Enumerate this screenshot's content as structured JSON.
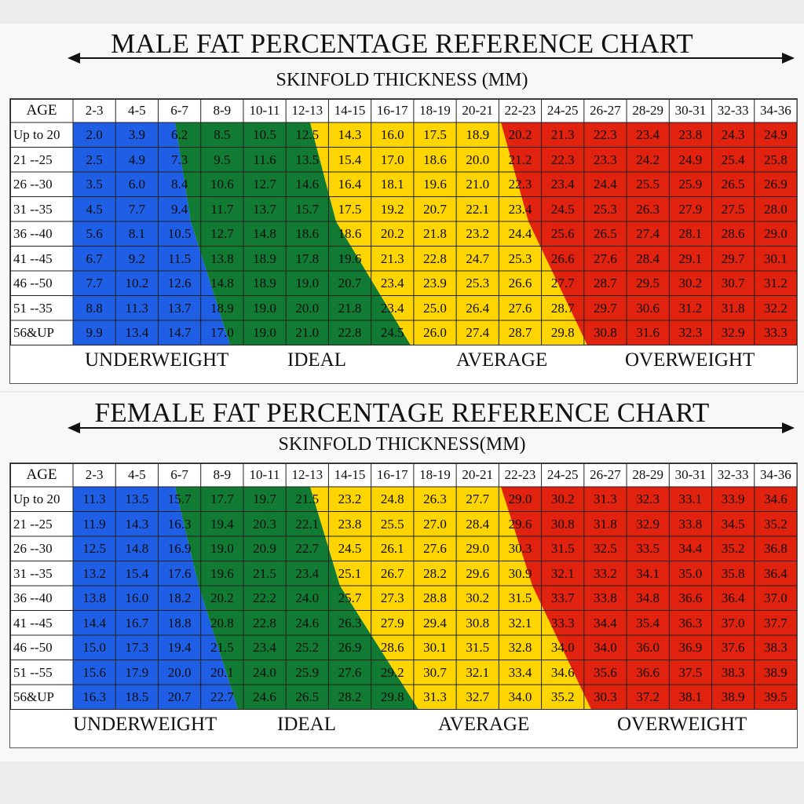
{
  "colors": {
    "underweight": "#1f5fe6",
    "ideal": "#117a33",
    "average": "#ffd500",
    "overweight": "#e0220f"
  },
  "chart_data": [
    {
      "type": "table",
      "title": "MALE FAT PERCENTAGE REFERENCE CHART",
      "subtitle": "SKINFOLD THICKNESS (MM)",
      "corner": "AGE",
      "columns": [
        "2-3",
        "4-5",
        "6-7",
        "8-9",
        "10-11",
        "12-13",
        "14-15",
        "16-17",
        "18-19",
        "20-21",
        "22-23",
        "24-25",
        "26-27",
        "28-29",
        "30-31",
        "32-33",
        "34-36"
      ],
      "rows": [
        "Up to 20",
        "21 --25",
        "26 --30",
        "31 --35",
        "36 --40",
        "41 --45",
        "46 --50",
        "51 --35",
        "56&UP"
      ],
      "values": [
        [
          "2.0",
          "3.9",
          "6.2",
          "8.5",
          "10.5",
          "12.5",
          "14.3",
          "16.0",
          "17.5",
          "18.9",
          "20.2",
          "21.3",
          "22.3",
          "23.4",
          "23.8",
          "24.3",
          "24.9"
        ],
        [
          "2.5",
          "4.9",
          "7.3",
          "9.5",
          "11.6",
          "13.5",
          "15.4",
          "17.0",
          "18.6",
          "20.0",
          "21.2",
          "22.3",
          "23.3",
          "24.2",
          "24.9",
          "25.4",
          "25.8"
        ],
        [
          "3.5",
          "6.0",
          "8.4",
          "10.6",
          "12.7",
          "14.6",
          "16.4",
          "18.1",
          "19.6",
          "21.0",
          "22.3",
          "23.4",
          "24.4",
          "25.5",
          "25.9",
          "26.5",
          "26.9"
        ],
        [
          "4.5",
          "7.7",
          "9.4",
          "11.7",
          "13.7",
          "15.7",
          "17.5",
          "19.2",
          "20.7",
          "22.1",
          "23.4",
          "24.5",
          "25.3",
          "26.3",
          "27.9",
          "27.5",
          "28.0"
        ],
        [
          "5.6",
          "8.1",
          "10.5",
          "12.7",
          "14.8",
          "18.6",
          "18.6",
          "20.2",
          "21.8",
          "23.2",
          "24.4",
          "25.6",
          "26.5",
          "27.4",
          "28.1",
          "28.6",
          "29.0"
        ],
        [
          "6.7",
          "9.2",
          "11.5",
          "13.8",
          "18.9",
          "17.8",
          "19.6",
          "21.3",
          "22.8",
          "24.7",
          "25.3",
          "26.6",
          "27.6",
          "28.4",
          "29.1",
          "29.7",
          "30.1"
        ],
        [
          "7.7",
          "10.2",
          "12.6",
          "14.8",
          "18.9",
          "19.0",
          "20.7",
          "23.4",
          "23.9",
          "25.3",
          "26.6",
          "27.7",
          "28.7",
          "29.5",
          "30.2",
          "30.7",
          "31.2"
        ],
        [
          "8.8",
          "11.3",
          "13.7",
          "18.9",
          "19.0",
          "20.0",
          "21.8",
          "23.4",
          "25.0",
          "26.4",
          "27.6",
          "28.7",
          "29.7",
          "30.6",
          "31.2",
          "31.8",
          "32.2"
        ],
        [
          "9.9",
          "13.4",
          "14.7",
          "17.0",
          "19.0",
          "21.0",
          "22.8",
          "24.5",
          "26.0",
          "27.4",
          "28.7",
          "29.8",
          "30.8",
          "31.6",
          "32.3",
          "32.9",
          "33.3"
        ]
      ],
      "categories": [
        "UNDERWEIGHT",
        "IDEAL",
        "AVERAGE",
        "OVERWEIGHT"
      ]
    },
    {
      "type": "table",
      "title": "FEMALE FAT PERCENTAGE REFERENCE CHART",
      "subtitle": "SKINFOLD THICKNESS(MM)",
      "corner": "AGE",
      "columns": [
        "2-3",
        "4-5",
        "6-7",
        "8-9",
        "10-11",
        "12-13",
        "14-15",
        "16-17",
        "18-19",
        "20-21",
        "22-23",
        "24-25",
        "26-27",
        "28-29",
        "30-31",
        "32-33",
        "34-36"
      ],
      "rows": [
        "Up to 20",
        "21 --25",
        "26 --30",
        "31 --35",
        "36 --40",
        "41 --45",
        "46 --50",
        "51 --55",
        "56&UP"
      ],
      "values": [
        [
          "11.3",
          "13.5",
          "15.7",
          "17.7",
          "19.7",
          "21.5",
          "23.2",
          "24.8",
          "26.3",
          "27.7",
          "29.0",
          "30.2",
          "31.3",
          "32.3",
          "33.1",
          "33.9",
          "34.6"
        ],
        [
          "11.9",
          "14.3",
          "16.3",
          "19.4",
          "20.3",
          "22.1",
          "23.8",
          "25.5",
          "27.0",
          "28.4",
          "29.6",
          "30.8",
          "31.8",
          "32.9",
          "33.8",
          "34.5",
          "35.2"
        ],
        [
          "12.5",
          "14.8",
          "16.9",
          "19.0",
          "20.9",
          "22.7",
          "24.5",
          "26.1",
          "27.6",
          "29.0",
          "30.3",
          "31.5",
          "32.5",
          "33.5",
          "34.4",
          "35.2",
          "36.8"
        ],
        [
          "13.2",
          "15.4",
          "17.6",
          "19.6",
          "21.5",
          "23.4",
          "25.1",
          "26.7",
          "28.2",
          "29.6",
          "30.9",
          "32.1",
          "33.2",
          "34.1",
          "35.0",
          "35.8",
          "36.4"
        ],
        [
          "13.8",
          "16.0",
          "18.2",
          "20.2",
          "22.2",
          "24.0",
          "25.7",
          "27.3",
          "28.8",
          "30.2",
          "31.5",
          "33.7",
          "33.8",
          "34.8",
          "36.6",
          "36.4",
          "37.0"
        ],
        [
          "14.4",
          "16.7",
          "18.8",
          "20.8",
          "22.8",
          "24.6",
          "26.3",
          "27.9",
          "29.4",
          "30.8",
          "32.1",
          "33.3",
          "34.4",
          "35.4",
          "36.3",
          "37.0",
          "37.7"
        ],
        [
          "15.0",
          "17.3",
          "19.4",
          "21.5",
          "23.4",
          "25.2",
          "26.9",
          "28.6",
          "30.1",
          "31.5",
          "32.8",
          "34.0",
          "34.0",
          "36.0",
          "36.9",
          "37.6",
          "38.3"
        ],
        [
          "15.6",
          "17.9",
          "20.0",
          "20.1",
          "24.0",
          "25.9",
          "27.6",
          "29.2",
          "30.7",
          "32.1",
          "33.4",
          "34.6",
          "35.6",
          "36.6",
          "37.5",
          "38.3",
          "38.9"
        ],
        [
          "16.3",
          "18.5",
          "20.7",
          "22.7",
          "24.6",
          "26.5",
          "28.2",
          "29.8",
          "31.3",
          "32.7",
          "34.0",
          "35.2",
          "30.3",
          "37.2",
          "38.1",
          "38.9",
          "39.5"
        ]
      ],
      "categories": [
        "UNDERWEIGHT",
        "IDEAL",
        "AVERAGE",
        "OVERWEIGHT"
      ]
    }
  ]
}
